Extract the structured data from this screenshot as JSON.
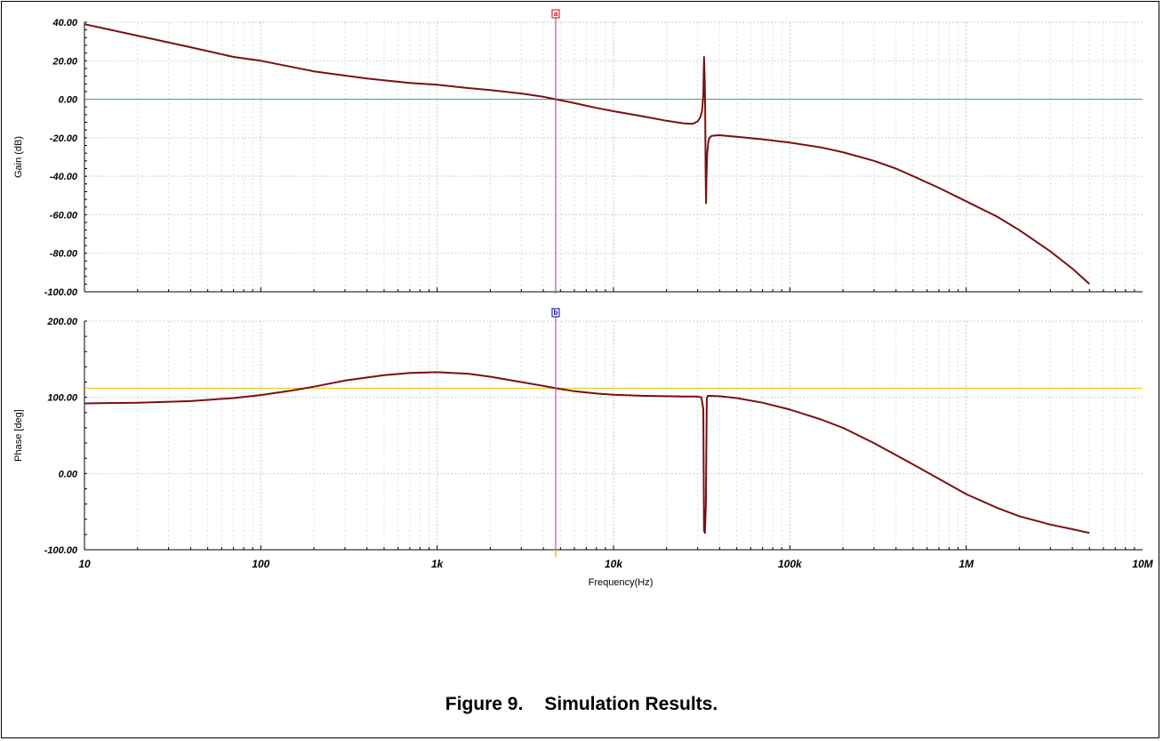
{
  "caption": {
    "number": "Figure 9.",
    "text": "Simulation Results."
  },
  "chart_data": [
    {
      "type": "line",
      "panel": "gain",
      "ylabel": "Gain (dB)",
      "xlabel": "",
      "xscale": "log",
      "xlim": [
        10,
        10000000
      ],
      "ylim": [
        -100,
        40
      ],
      "yticks": [
        40,
        20,
        0,
        -20,
        -40,
        -60,
        -80,
        -100
      ],
      "ytick_labels": [
        "40.00",
        "20.00",
        "0.00",
        "-20.00",
        "-40.00",
        "-60.00",
        "-80.00",
        "-100.00"
      ],
      "grid": true,
      "reference_line": {
        "value": 0,
        "color": "#3a9a9a"
      },
      "cursor": {
        "x": 4700,
        "label": "a",
        "color": "#c80000"
      },
      "series": [
        {
          "color": "#7a0f12",
          "x": [
            10,
            20,
            40,
            70,
            100,
            200,
            400,
            700,
            1000,
            1500,
            2000,
            3000,
            4000,
            4700,
            6000,
            8000,
            10000,
            15000,
            20000,
            25000,
            28000,
            30000,
            31000,
            31800,
            32300,
            32600,
            32900,
            33100,
            33300,
            33500,
            33700,
            34000,
            34500,
            35000,
            36000,
            38000,
            40000,
            50000,
            70000,
            100000,
            150000,
            200000,
            300000,
            400000,
            500000,
            700000,
            1000000,
            1500000,
            2000000,
            3000000,
            4000000,
            5000000
          ],
          "y": [
            39,
            33,
            27,
            22,
            20,
            14.5,
            10.8,
            8.5,
            7.5,
            5.8,
            4.8,
            3,
            1.3,
            0,
            -2,
            -4.5,
            -6.2,
            -9,
            -11.2,
            -12.5,
            -12.8,
            -11.5,
            -9.5,
            -6,
            2,
            22,
            10,
            -5,
            -38,
            -54,
            -40,
            -28,
            -22,
            -20,
            -19,
            -18.8,
            -18.7,
            -19.5,
            -20.8,
            -22.5,
            -25,
            -27.5,
            -32,
            -36,
            -40,
            -46,
            -53,
            -61,
            -68,
            -79,
            -88,
            -96
          ]
        }
      ]
    },
    {
      "type": "line",
      "panel": "phase",
      "ylabel": "Phase [deg]",
      "xlabel": "Frequency(Hz)",
      "xscale": "log",
      "xlim": [
        10,
        10000000
      ],
      "ylim": [
        -100,
        200
      ],
      "yticks": [
        200,
        100,
        0,
        -100
      ],
      "ytick_labels": [
        "200.00",
        "100.00",
        "0.00",
        "-100.00"
      ],
      "xticks": [
        10,
        100,
        1000,
        10000,
        100000,
        1000000,
        10000000
      ],
      "xtick_labels": [
        "10",
        "100",
        "1k",
        "10k",
        "100k",
        "1M",
        "10M"
      ],
      "grid": true,
      "reference_line": {
        "value": 112,
        "color": "#e8c400"
      },
      "cursor": {
        "x": 4700,
        "label": "b",
        "color": "#00008b"
      },
      "series": [
        {
          "color": "#7a0f12",
          "x": [
            10,
            20,
            40,
            70,
            100,
            150,
            200,
            300,
            500,
            700,
            1000,
            1500,
            2000,
            3000,
            4000,
            4700,
            6000,
            8000,
            10000,
            15000,
            20000,
            25000,
            30000,
            31500,
            32300,
            32600,
            33000,
            33400,
            33800,
            34200,
            35000,
            40000,
            50000,
            70000,
            100000,
            150000,
            200000,
            300000,
            500000,
            700000,
            1000000,
            1500000,
            2000000,
            3000000,
            4000000,
            5000000
          ],
          "y": [
            92,
            93,
            95,
            99,
            103,
            109,
            114,
            122,
            129,
            132,
            133,
            131,
            127,
            120,
            115,
            112,
            108,
            105,
            103.5,
            102,
            101.5,
            101,
            101,
            100,
            85,
            -75,
            -78,
            -40,
            98,
            102,
            102,
            101.5,
            99,
            93,
            84,
            71,
            60,
            40,
            12,
            -7,
            -27,
            -45,
            -56,
            -67,
            -73,
            -78
          ]
        }
      ]
    }
  ]
}
